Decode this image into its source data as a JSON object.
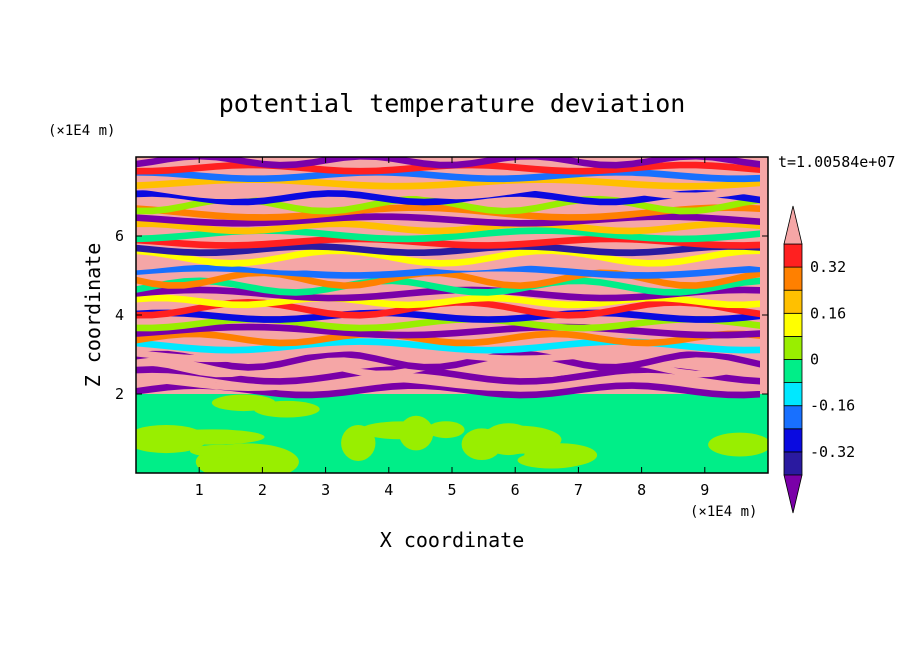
{
  "chart_data": {
    "type": "heatmap",
    "title": "potential temperature deviation",
    "xlabel": "X coordinate",
    "ylabel": "Z coordinate",
    "x_unit": "(×1E4 m)",
    "y_unit": "(×1E4 m)",
    "time_label": "t=1.00584e+07",
    "xlim": [
      0,
      10
    ],
    "ylim": [
      0,
      8
    ],
    "x_ticks": [
      "1",
      "2",
      "3",
      "4",
      "5",
      "6",
      "7",
      "8",
      "9"
    ],
    "y_ticks": [
      "2",
      "4",
      "6"
    ],
    "colorbar": {
      "labels": [
        "0.32",
        "0.16",
        "0",
        "-0.16",
        "-0.32"
      ],
      "label_values": [
        0.32,
        0.16,
        0,
        -0.16,
        -0.32
      ],
      "level_colors": [
        "#7a00a8",
        "#2a1aa0",
        "#0a0ae0",
        "#1870ff",
        "#00e8ff",
        "#00ee88",
        "#99ee00",
        "#ffff00",
        "#ffc000",
        "#ff8000",
        "#ff2020",
        "#f5a6a6"
      ],
      "extends": "both"
    }
  },
  "colors": {
    "lower_background": "#00ee88",
    "lower_patches": "#99ee00",
    "upper_background": "#f5a6a6",
    "band_dark": "#7a00a8"
  }
}
